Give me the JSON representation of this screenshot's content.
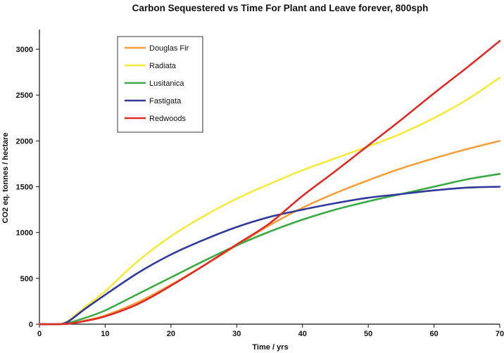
{
  "chart_data": {
    "type": "line",
    "title": "Carbon Sequestered vs Time For Plant and Leave forever, 800sph",
    "xlabel": "Time / yrs",
    "ylabel": "CO2 eq. tonnes / hectare",
    "xlim": [
      0,
      70
    ],
    "ylim": [
      0,
      3200
    ],
    "xticks": [
      0,
      10,
      20,
      30,
      40,
      50,
      60,
      70
    ],
    "yticks": [
      0,
      500,
      1000,
      1500,
      2000,
      2500,
      3000
    ],
    "grid": false,
    "legend": "top-left, inside plot",
    "series": [
      {
        "name": "Douglas Fir",
        "color": "#f5a03a",
        "x": [
          0,
          3,
          5,
          7,
          10,
          15,
          20,
          25,
          30,
          35,
          40,
          45,
          50,
          55,
          60,
          65,
          70
        ],
        "y": [
          0,
          0,
          10,
          40,
          95,
          240,
          430,
          640,
          860,
          1080,
          1270,
          1430,
          1570,
          1700,
          1810,
          1910,
          2000
        ]
      },
      {
        "name": "Radiata",
        "color": "#f7ea3a",
        "x": [
          0,
          3,
          4,
          5,
          7,
          10,
          15,
          20,
          25,
          30,
          35,
          40,
          45,
          50,
          55,
          60,
          65,
          70
        ],
        "y": [
          0,
          0,
          20,
          70,
          190,
          360,
          690,
          960,
          1180,
          1370,
          1530,
          1680,
          1810,
          1940,
          2080,
          2250,
          2450,
          2690
        ]
      },
      {
        "name": "Lusitanica",
        "color": "#3aaa45",
        "x": [
          0,
          3,
          5,
          7,
          10,
          15,
          20,
          25,
          30,
          35,
          40,
          45,
          50,
          55,
          60,
          65,
          70
        ],
        "y": [
          0,
          0,
          25,
          70,
          150,
          330,
          510,
          690,
          860,
          1010,
          1140,
          1250,
          1340,
          1420,
          1500,
          1580,
          1640
        ]
      },
      {
        "name": "Fastigata",
        "color": "#2f3a9a",
        "x": [
          0,
          3,
          4,
          5,
          7,
          10,
          15,
          20,
          25,
          30,
          35,
          40,
          45,
          50,
          55,
          60,
          65,
          70
        ],
        "y": [
          0,
          0,
          15,
          60,
          170,
          320,
          560,
          760,
          920,
          1060,
          1170,
          1250,
          1320,
          1380,
          1420,
          1460,
          1490,
          1500
        ]
      },
      {
        "name": "Redwoods",
        "color": "#e02a26",
        "x": [
          0,
          3,
          5,
          7,
          10,
          15,
          20,
          25,
          30,
          35,
          40,
          45,
          50,
          55,
          60,
          65,
          70
        ],
        "y": [
          0,
          0,
          10,
          35,
          85,
          220,
          420,
          640,
          870,
          1100,
          1400,
          1670,
          1950,
          2230,
          2520,
          2800,
          3090
        ]
      }
    ]
  }
}
